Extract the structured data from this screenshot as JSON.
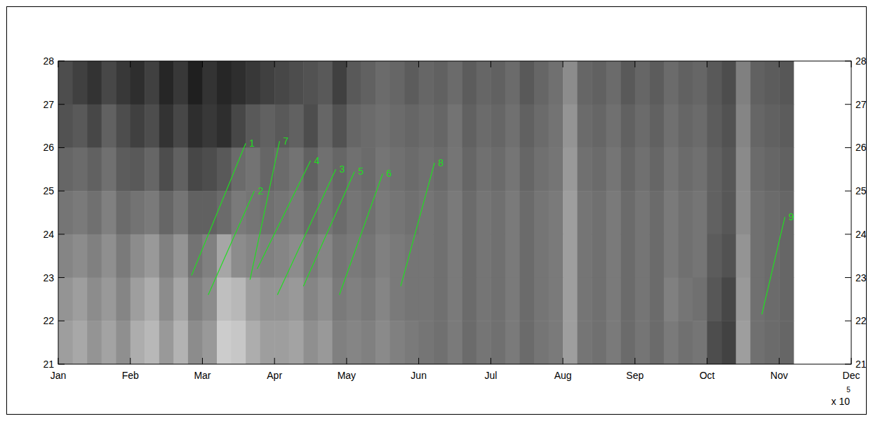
{
  "chart_data": {
    "type": "heatmap",
    "xlim": [
      0,
      11
    ],
    "xticks": [
      {
        "value": 0,
        "label": "Jan"
      },
      {
        "value": 1,
        "label": "Feb"
      },
      {
        "value": 2,
        "label": "Mar"
      },
      {
        "value": 3,
        "label": "Apr"
      },
      {
        "value": 4,
        "label": "May"
      },
      {
        "value": 5,
        "label": "Jun"
      },
      {
        "value": 6,
        "label": "Jul"
      },
      {
        "value": 7,
        "label": "Aug"
      },
      {
        "value": 8,
        "label": "Sep"
      },
      {
        "value": 9,
        "label": "Oct"
      },
      {
        "value": 10,
        "label": "Nov"
      },
      {
        "value": 11,
        "label": "Dec"
      }
    ],
    "ylim": [
      21,
      28
    ],
    "yticks": [
      21,
      22,
      23,
      24,
      25,
      26,
      27,
      28
    ],
    "x_scale_label": "x 10",
    "x_scale_exponent": "5",
    "cell_range": [
      0,
      100
    ],
    "cell_x": [
      0,
      0.2,
      0.4,
      0.6,
      0.8,
      1,
      1.2,
      1.4,
      1.6,
      1.8,
      2,
      2.2,
      2.4,
      2.6,
      2.8,
      3,
      3.2,
      3.4,
      3.6,
      3.8,
      4,
      4.2,
      4.4,
      4.6,
      4.8,
      5,
      5.2,
      5.4,
      5.6,
      5.8,
      6,
      6.2,
      6.4,
      6.6,
      6.8,
      7,
      7.2,
      7.4,
      7.6,
      7.8,
      8,
      8.2,
      8.4,
      8.6,
      8.8,
      9,
      9.2,
      9.4,
      9.6,
      9.8,
      10,
      10.2
    ],
    "cell_y": [
      28,
      27,
      26,
      25,
      24,
      23,
      22,
      21
    ],
    "cells": [
      [
        30,
        25,
        20,
        28,
        22,
        18,
        25,
        15,
        22,
        12,
        20,
        15,
        18,
        22,
        25,
        28,
        30,
        32,
        35,
        25,
        35,
        38,
        42,
        40,
        36,
        40,
        38,
        42,
        36,
        40,
        38,
        42,
        35,
        40,
        44,
        55,
        40,
        38,
        42,
        35,
        40,
        36,
        42,
        38,
        40,
        35,
        30,
        50,
        38,
        36,
        34
      ],
      [
        32,
        35,
        28,
        38,
        30,
        25,
        30,
        20,
        28,
        18,
        22,
        18,
        28,
        35,
        38,
        35,
        38,
        30,
        40,
        32,
        40,
        42,
        44,
        42,
        40,
        42,
        40,
        45,
        38,
        42,
        40,
        44,
        38,
        42,
        45,
        58,
        42,
        40,
        44,
        38,
        42,
        38,
        44,
        40,
        42,
        36,
        32,
        52,
        40,
        38,
        36
      ],
      [
        40,
        42,
        38,
        44,
        36,
        35,
        40,
        30,
        38,
        28,
        30,
        35,
        42,
        45,
        40,
        42,
        45,
        38,
        44,
        40,
        44,
        42,
        46,
        44,
        42,
        44,
        42,
        46,
        40,
        44,
        42,
        46,
        40,
        44,
        46,
        60,
        44,
        42,
        46,
        40,
        44,
        40,
        46,
        42,
        44,
        38,
        34,
        54,
        42,
        40,
        38
      ],
      [
        46,
        48,
        44,
        50,
        42,
        45,
        48,
        40,
        46,
        38,
        38,
        42,
        48,
        46,
        44,
        46,
        48,
        42,
        46,
        42,
        46,
        44,
        48,
        46,
        44,
        46,
        44,
        48,
        42,
        46,
        44,
        48,
        42,
        46,
        48,
        62,
        46,
        44,
        48,
        42,
        46,
        42,
        48,
        44,
        46,
        38,
        34,
        55,
        44,
        42,
        40
      ],
      [
        52,
        55,
        50,
        56,
        48,
        55,
        60,
        50,
        58,
        45,
        50,
        65,
        55,
        52,
        50,
        52,
        55,
        48,
        52,
        46,
        48,
        46,
        50,
        48,
        46,
        46,
        44,
        48,
        42,
        46,
        44,
        48,
        42,
        46,
        48,
        62,
        46,
        44,
        48,
        42,
        46,
        42,
        48,
        44,
        46,
        36,
        32,
        58,
        44,
        42,
        40
      ],
      [
        58,
        62,
        55,
        60,
        52,
        62,
        68,
        55,
        65,
        50,
        55,
        75,
        72,
        62,
        58,
        58,
        60,
        52,
        56,
        48,
        50,
        48,
        52,
        48,
        46,
        46,
        44,
        48,
        42,
        46,
        44,
        48,
        42,
        46,
        48,
        62,
        46,
        44,
        48,
        42,
        46,
        42,
        50,
        46,
        44,
        34,
        28,
        60,
        44,
        42,
        40
      ],
      [
        62,
        66,
        58,
        64,
        56,
        68,
        72,
        60,
        70,
        55,
        60,
        80,
        78,
        68,
        62,
        62,
        64,
        56,
        60,
        50,
        52,
        50,
        54,
        50,
        48,
        46,
        44,
        48,
        42,
        46,
        44,
        48,
        42,
        46,
        48,
        62,
        46,
        44,
        48,
        42,
        46,
        42,
        48,
        44,
        46,
        30,
        26,
        62,
        44,
        42,
        40
      ]
    ],
    "series": [
      {
        "name": "1",
        "color": "#22dd22",
        "x": [
          1.85,
          2.6
        ],
        "values": [
          23.05,
          26.1
        ]
      },
      {
        "name": "2",
        "color": "#22dd22",
        "x": [
          2.08,
          2.72
        ],
        "values": [
          22.6,
          25.0
        ]
      },
      {
        "name": "7",
        "color": "#22dd22",
        "x": [
          2.66,
          3.07
        ],
        "values": [
          22.95,
          26.15
        ]
      },
      {
        "name": "4",
        "color": "#22dd22",
        "x": [
          2.76,
          3.5
        ],
        "values": [
          23.2,
          25.7
        ]
      },
      {
        "name": "3",
        "color": "#22dd22",
        "x": [
          3.04,
          3.85
        ],
        "values": [
          22.6,
          25.5
        ]
      },
      {
        "name": "5",
        "color": "#22dd22",
        "x": [
          3.4,
          4.11
        ],
        "values": [
          22.8,
          25.45
        ]
      },
      {
        "name": "6",
        "color": "#22dd22",
        "x": [
          3.9,
          4.5
        ],
        "values": [
          22.6,
          25.4
        ]
      },
      {
        "name": "8",
        "color": "#22dd22",
        "x": [
          4.75,
          5.22
        ],
        "values": [
          22.8,
          25.65
        ]
      },
      {
        "name": "9",
        "color": "#22dd22",
        "x": [
          9.76,
          10.08
        ],
        "values": [
          22.15,
          24.4
        ]
      }
    ]
  }
}
